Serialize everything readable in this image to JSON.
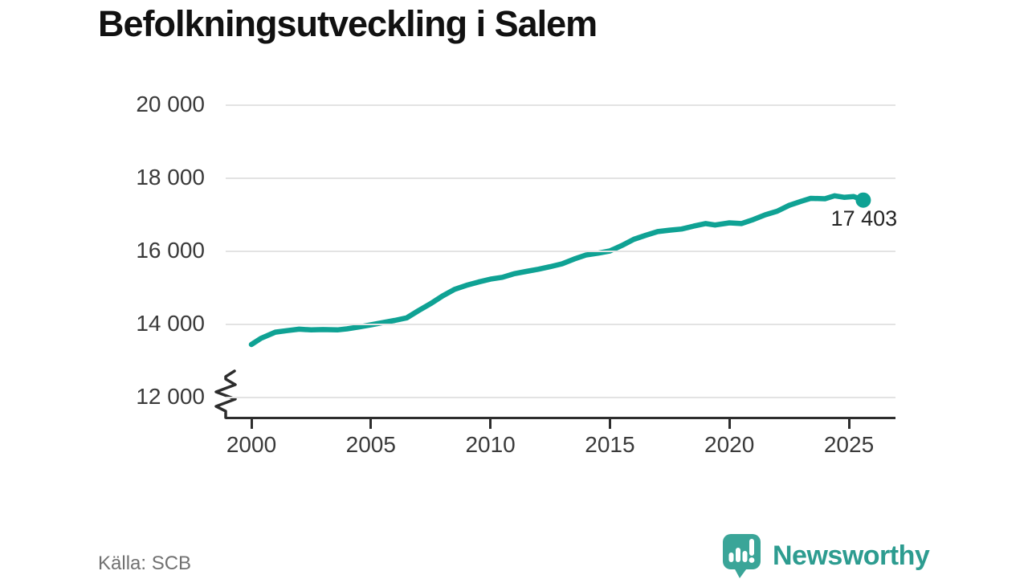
{
  "title": "Befolkningsutveckling i Salem",
  "source": "Källa: SCB",
  "brand": {
    "name": "Newsworthy",
    "icon": "newsworthy-speech-bubble-chart-icon",
    "text_color": "#2d9c90",
    "bubble_color": "#3aa598"
  },
  "chart_data": {
    "type": "line",
    "title": "Befolkningsutveckling i Salem",
    "xlabel": "",
    "ylabel": "",
    "grid": true,
    "axis_break_below_y_min": true,
    "line_color": "#0fa294",
    "xlim": [
      1998.9,
      2027
    ],
    "ylim": [
      12000,
      20000
    ],
    "x_ticks": [
      {
        "label": "2000",
        "year": 2000
      },
      {
        "label": "2005",
        "year": 2005
      },
      {
        "label": "2010",
        "year": 2010
      },
      {
        "label": "2015",
        "year": 2015
      },
      {
        "label": "2020",
        "year": 2020
      },
      {
        "label": "2025",
        "year": 2025
      }
    ],
    "y_ticks": [
      {
        "label": "20 000",
        "value": 20000
      },
      {
        "label": "18 000",
        "value": 18000
      },
      {
        "label": "16 000",
        "value": 16000
      },
      {
        "label": "14 000",
        "value": 14000
      },
      {
        "label": "12 000",
        "value": 12000
      }
    ],
    "end_label": "17 403",
    "end_value": 17403,
    "series": [
      {
        "name": "Befolkning i Salem",
        "points": [
          [
            2000.0,
            13450
          ],
          [
            2000.4,
            13620
          ],
          [
            2001.0,
            13790
          ],
          [
            2001.5,
            13830
          ],
          [
            2002.0,
            13870
          ],
          [
            2002.5,
            13850
          ],
          [
            2003.0,
            13860
          ],
          [
            2003.6,
            13850
          ],
          [
            2004.0,
            13880
          ],
          [
            2004.5,
            13930
          ],
          [
            2005.0,
            13990
          ],
          [
            2005.5,
            14050
          ],
          [
            2006.0,
            14110
          ],
          [
            2006.5,
            14180
          ],
          [
            2007.0,
            14380
          ],
          [
            2007.5,
            14570
          ],
          [
            2008.0,
            14780
          ],
          [
            2008.5,
            14960
          ],
          [
            2009.0,
            15070
          ],
          [
            2009.5,
            15160
          ],
          [
            2010.0,
            15240
          ],
          [
            2010.5,
            15290
          ],
          [
            2011.0,
            15390
          ],
          [
            2011.5,
            15450
          ],
          [
            2012.0,
            15510
          ],
          [
            2012.5,
            15580
          ],
          [
            2013.0,
            15660
          ],
          [
            2013.5,
            15790
          ],
          [
            2014.0,
            15900
          ],
          [
            2014.5,
            15950
          ],
          [
            2015.0,
            16010
          ],
          [
            2015.5,
            16160
          ],
          [
            2016.0,
            16330
          ],
          [
            2016.5,
            16440
          ],
          [
            2017.0,
            16540
          ],
          [
            2017.5,
            16580
          ],
          [
            2018.0,
            16610
          ],
          [
            2018.5,
            16690
          ],
          [
            2019.0,
            16760
          ],
          [
            2019.4,
            16720
          ],
          [
            2020.0,
            16780
          ],
          [
            2020.5,
            16760
          ],
          [
            2021.0,
            16870
          ],
          [
            2021.5,
            17000
          ],
          [
            2022.0,
            17100
          ],
          [
            2022.5,
            17260
          ],
          [
            2023.0,
            17370
          ],
          [
            2023.4,
            17450
          ],
          [
            2024.0,
            17440
          ],
          [
            2024.4,
            17520
          ],
          [
            2024.8,
            17480
          ],
          [
            2025.2,
            17500
          ],
          [
            2025.6,
            17403
          ]
        ]
      }
    ]
  }
}
